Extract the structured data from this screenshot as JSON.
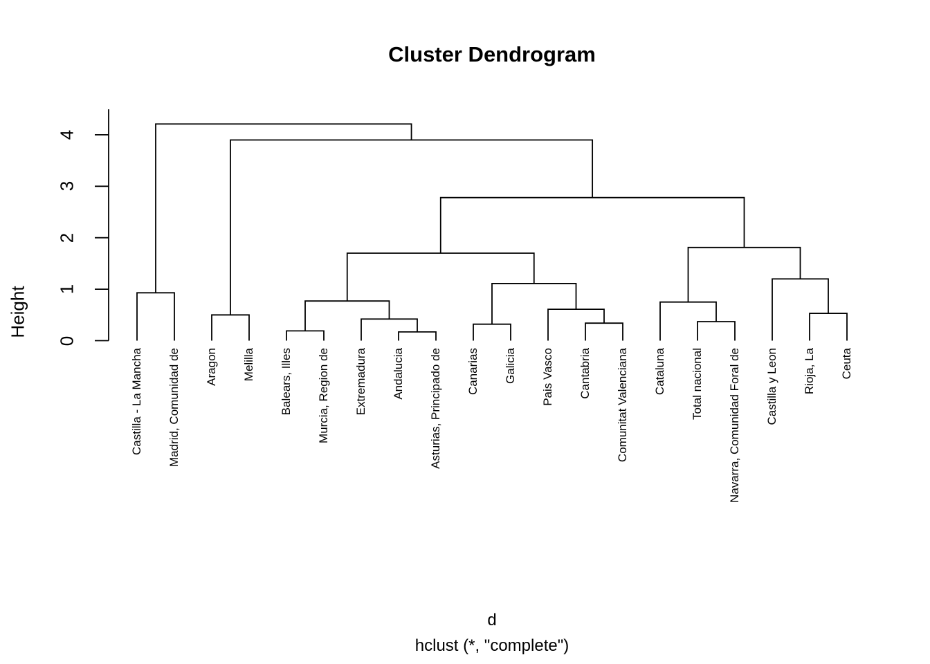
{
  "figure": {
    "title": "Cluster Dendrogram",
    "y_axis_label": "Height",
    "caption_line1": "d",
    "caption_line2": "hclust (*, \"complete\")"
  },
  "chart_data": {
    "type": "dendrogram",
    "title": "Cluster Dendrogram",
    "ylabel": "Height",
    "xlabel": "d",
    "subtitle": "hclust (*, \"complete\")",
    "yticks": [
      0,
      1,
      2,
      3,
      4
    ],
    "ylim": [
      0,
      4.5
    ],
    "grid": false,
    "line_color": "#000000",
    "background_color": "#ffffff",
    "leaf_order": [
      "Castilla - La Mancha",
      "Madrid, Comunidad de",
      "Aragon",
      "Melilla",
      "Balears, Illes",
      "Murcia, Region de",
      "Extremadura",
      "Andalucia",
      "Asturias, Principado de",
      "Canarias",
      "Galicia",
      "Pais Vasco",
      "Cantabria",
      "Comunitat Valenciana",
      "Cataluna",
      "Total nacional",
      "Navarra, Comunidad Foral de",
      "Castilla y Leon",
      "Rioja, La",
      "Ceuta"
    ],
    "tree": {
      "h": 4.21,
      "children": [
        {
          "h": 0.93,
          "children": [
            {
              "leaf": "Castilla - La Mancha"
            },
            {
              "leaf": "Madrid, Comunidad de"
            }
          ]
        },
        {
          "h": 3.9,
          "children": [
            {
              "h": 0.5,
              "children": [
                {
                  "leaf": "Aragon"
                },
                {
                  "leaf": "Melilla"
                }
              ]
            },
            {
              "h": 2.78,
              "children": [
                {
                  "h": 1.7,
                  "children": [
                    {
                      "h": 0.77,
                      "children": [
                        {
                          "h": 0.19,
                          "children": [
                            {
                              "leaf": "Balears, Illes"
                            },
                            {
                              "leaf": "Murcia, Region de"
                            }
                          ]
                        },
                        {
                          "h": 0.42,
                          "children": [
                            {
                              "leaf": "Extremadura"
                            },
                            {
                              "h": 0.17,
                              "children": [
                                {
                                  "leaf": "Andalucia"
                                },
                                {
                                  "leaf": "Asturias, Principado de"
                                }
                              ]
                            }
                          ]
                        }
                      ]
                    },
                    {
                      "h": 1.11,
                      "children": [
                        {
                          "h": 0.32,
                          "children": [
                            {
                              "leaf": "Canarias"
                            },
                            {
                              "leaf": "Galicia"
                            }
                          ]
                        },
                        {
                          "h": 0.61,
                          "children": [
                            {
                              "leaf": "Pais Vasco"
                            },
                            {
                              "h": 0.34,
                              "children": [
                                {
                                  "leaf": "Cantabria"
                                },
                                {
                                  "leaf": "Comunitat Valenciana"
                                }
                              ]
                            }
                          ]
                        }
                      ]
                    }
                  ]
                },
                {
                  "h": 1.81,
                  "children": [
                    {
                      "h": 0.75,
                      "children": [
                        {
                          "leaf": "Cataluna"
                        },
                        {
                          "h": 0.37,
                          "children": [
                            {
                              "leaf": "Total nacional"
                            },
                            {
                              "leaf": "Navarra, Comunidad Foral de"
                            }
                          ]
                        }
                      ]
                    },
                    {
                      "h": 1.2,
                      "children": [
                        {
                          "leaf": "Castilla y Leon"
                        },
                        {
                          "h": 0.53,
                          "children": [
                            {
                              "leaf": "Rioja, La"
                            },
                            {
                              "leaf": "Ceuta"
                            }
                          ]
                        }
                      ]
                    }
                  ]
                }
              ]
            }
          ]
        }
      ]
    }
  }
}
